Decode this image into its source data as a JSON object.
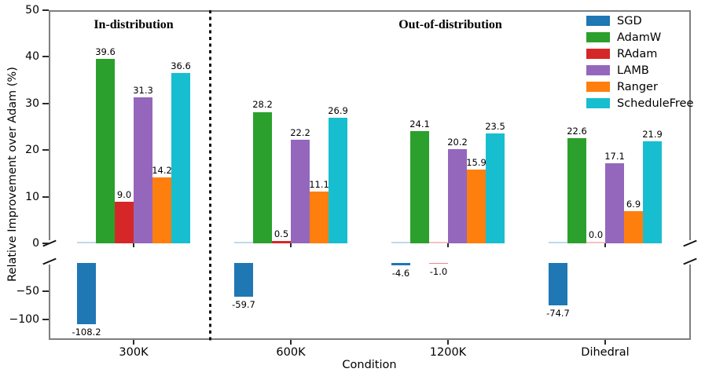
{
  "chart_data": {
    "type": "bar",
    "title": "",
    "xlabel": "Condition",
    "ylabel": "Relative Improvement over Adam (%)",
    "section_titles": {
      "in": "In-distribution",
      "out": "Out-of-distribution"
    },
    "categories": [
      "300K",
      "600K",
      "1200K",
      "Dihedral"
    ],
    "series": [
      {
        "name": "SGD",
        "color": "#1f77b4",
        "values": [
          -108.2,
          -59.7,
          -4.6,
          -74.7
        ],
        "labels": [
          "-108.2",
          "-59.7",
          "-4.6",
          "-74.7"
        ]
      },
      {
        "name": "AdamW",
        "color": "#2ca02c",
        "values": [
          39.6,
          28.2,
          24.1,
          22.6
        ],
        "labels": [
          "39.6",
          "28.2",
          "24.1",
          "22.6"
        ]
      },
      {
        "name": "RAdam",
        "color": "#d62728",
        "values": [
          9.0,
          0.5,
          -1.0,
          0.0
        ],
        "labels": [
          "9.0",
          "0.5",
          "-1.0",
          "0.0"
        ]
      },
      {
        "name": "LAMB",
        "color": "#9467bd",
        "values": [
          31.3,
          22.2,
          20.2,
          17.1
        ],
        "labels": [
          "31.3",
          "22.2",
          "20.2",
          "17.1"
        ]
      },
      {
        "name": "Ranger",
        "color": "#ff7f0e",
        "values": [
          14.2,
          11.1,
          15.9,
          6.9
        ],
        "labels": [
          "14.2",
          "11.1",
          "15.9",
          "6.9"
        ]
      },
      {
        "name": "ScheduleFree",
        "color": "#17becf",
        "values": [
          36.6,
          26.9,
          23.5,
          21.9
        ],
        "labels": [
          "36.6",
          "26.9",
          "23.5",
          "21.9"
        ]
      }
    ],
    "axes": {
      "broken_axis": true,
      "upper_ylim": [
        0,
        50
      ],
      "upper_yticks": [
        {
          "value": 0,
          "label": "0"
        },
        {
          "value": 10,
          "label": "10"
        },
        {
          "value": 20,
          "label": "20"
        },
        {
          "value": 30,
          "label": "30"
        },
        {
          "value": 40,
          "label": "40"
        },
        {
          "value": 50,
          "label": "50"
        }
      ],
      "lower_yticks": [
        {
          "value": -50,
          "label": "−50"
        },
        {
          "value": -100,
          "label": "−100"
        }
      ],
      "grid": false,
      "divider_after_category": "300K"
    },
    "legend": {
      "position": "upper right",
      "entries": [
        "SGD",
        "AdamW",
        "RAdam",
        "LAMB",
        "Ranger",
        "ScheduleFree"
      ]
    }
  }
}
